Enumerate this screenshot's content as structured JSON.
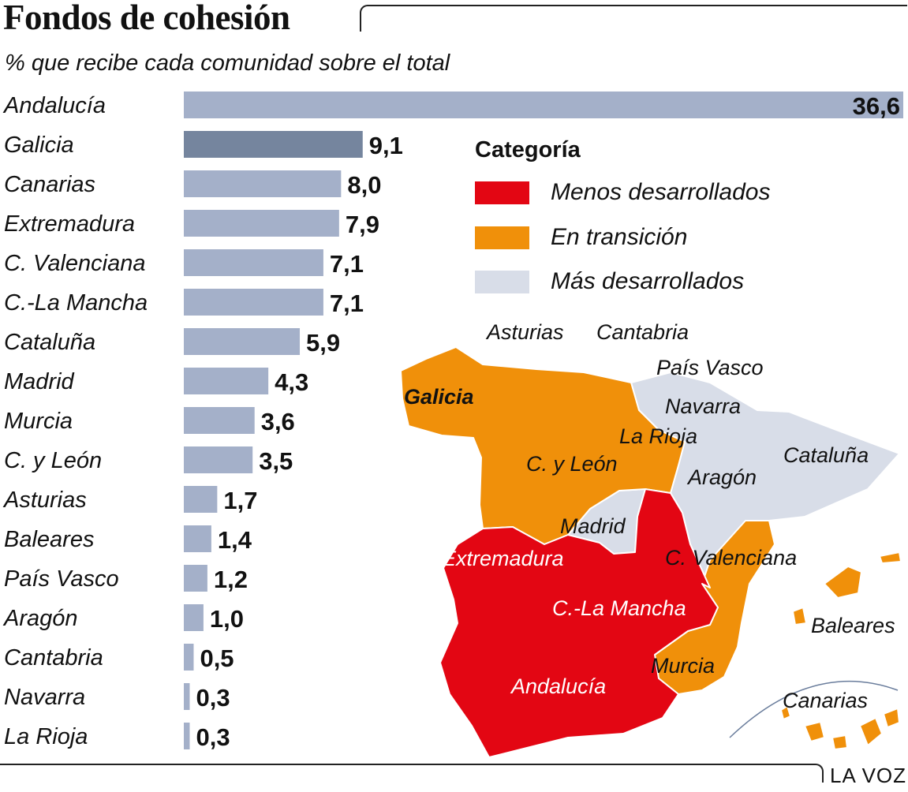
{
  "header": {
    "title": "Fondos de cohesión",
    "subtitle": "% que recibe cada comunidad sobre el total"
  },
  "chart_data": {
    "type": "bar",
    "orientation": "horizontal",
    "categories": [
      "Andalucía",
      "Galicia",
      "Canarias",
      "Extremadura",
      "C. Valenciana",
      "C.-La Mancha",
      "Cataluña",
      "Madrid",
      "Murcia",
      "C. y León",
      "Asturias",
      "Baleares",
      "País Vasco",
      "Aragón",
      "Cantabria",
      "Navarra",
      "La Rioja"
    ],
    "values": [
      36.6,
      9.1,
      8.0,
      7.9,
      7.1,
      7.1,
      5.9,
      4.3,
      3.6,
      3.5,
      1.7,
      1.4,
      1.2,
      1.0,
      0.5,
      0.3,
      0.3
    ],
    "value_labels": [
      "36,6",
      "9,1",
      "8,0",
      "7,9",
      "7,1",
      "7,1",
      "5,9",
      "4,3",
      "3,6",
      "3,5",
      "1,7",
      "1,4",
      "1,2",
      "1,0",
      "0,5",
      "0,3",
      "0,3"
    ],
    "highlight": "Galicia",
    "colors": {
      "bar": "#a4b0c9",
      "highlight_bar": "#75859e"
    },
    "xlim": [
      0,
      36.6
    ]
  },
  "legend": {
    "title": "Categoría",
    "items": [
      {
        "label": "Menos desarrollados",
        "color": "#e30613"
      },
      {
        "label": "En transición",
        "color": "#f0900a"
      },
      {
        "label": "Más desarrollados",
        "color": "#d8dde8"
      }
    ]
  },
  "map": {
    "labels": [
      "Asturias",
      "Cantabria",
      "País Vasco",
      "Navarra",
      "Galicia",
      "La Rioja",
      "C. y León",
      "Cataluña",
      "Aragón",
      "Madrid",
      "Extremadura",
      "C. Valenciana",
      "C.-La Mancha",
      "Baleares",
      "Murcia",
      "Andalucía",
      "Canarias"
    ]
  },
  "source": "LA VOZ"
}
